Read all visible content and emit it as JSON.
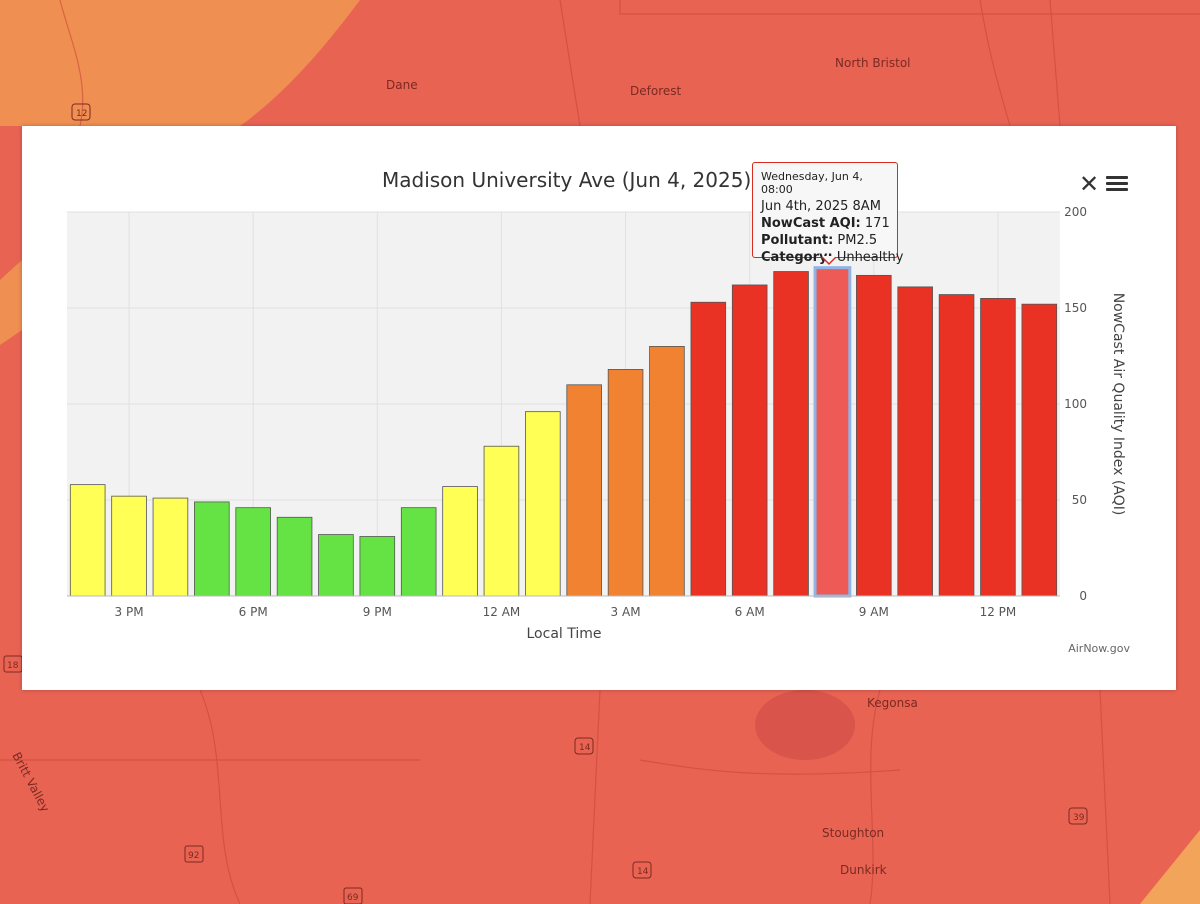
{
  "map": {
    "labels": [
      "Dane",
      "Deforest",
      "North Bristol",
      "Kegonsa",
      "Stoughton",
      "Dunkirk",
      "Britt Valley"
    ],
    "shields": [
      "12",
      "14",
      "92",
      "14",
      "69",
      "39",
      "18"
    ]
  },
  "chart_data": {
    "type": "bar",
    "title": "Madison University Ave (Jun 4, 2025)",
    "xlabel": "Local Time",
    "ylabel": "NowCast Air Quality Index (AQI)",
    "ylim": [
      0,
      200
    ],
    "yticks": [
      0,
      50,
      100,
      150,
      200
    ],
    "categories": [
      "2 PM",
      "3 PM",
      "4 PM",
      "5 PM",
      "6 PM",
      "7 PM",
      "8 PM",
      "9 PM",
      "10 PM",
      "11 PM",
      "12 AM",
      "1 AM",
      "2 AM",
      "3 AM",
      "4 AM",
      "5 AM",
      "6 AM",
      "7 AM",
      "8 AM",
      "9 AM",
      "10 AM",
      "11 AM",
      "12 PM",
      "1 PM"
    ],
    "tick_labels": [
      "3 PM",
      "6 PM",
      "9 PM",
      "12 AM",
      "3 AM",
      "6 AM",
      "9 AM",
      "12 PM"
    ],
    "values": [
      58,
      52,
      51,
      49,
      46,
      41,
      32,
      31,
      46,
      57,
      78,
      96,
      110,
      118,
      130,
      153,
      162,
      169,
      171,
      167,
      161,
      157,
      155,
      152
    ],
    "colors": [
      "#ffff55",
      "#ffff55",
      "#ffff55",
      "#66e344",
      "#66e344",
      "#66e344",
      "#66e344",
      "#66e344",
      "#66e344",
      "#ffff55",
      "#ffff55",
      "#ffff55",
      "#f08232",
      "#f08232",
      "#f08232",
      "#e93124",
      "#e93124",
      "#e93124",
      "#ee5a55",
      "#e93124",
      "#e93124",
      "#e93124",
      "#e93124",
      "#e93124"
    ],
    "highlight_index": 18,
    "credits": "AirNow.gov"
  },
  "tooltip": {
    "header": "Wednesday, Jun 4, 08:00",
    "time": "Jun 4th, 2025 8AM",
    "aqi_label": "NowCast AQI:",
    "aqi_value": "171",
    "pollutant_label": "Pollutant:",
    "pollutant_value": "PM2.5",
    "category_label": "Category:",
    "category_value": "Unhealthy"
  },
  "controls": {
    "close_glyph": "✕"
  }
}
